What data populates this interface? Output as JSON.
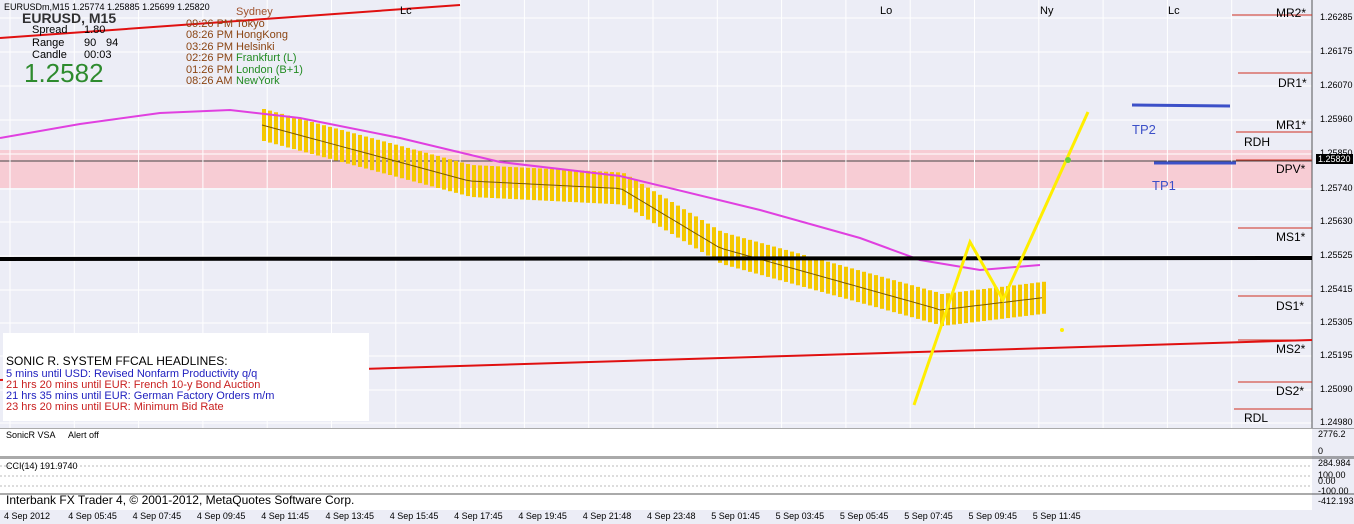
{
  "header": {
    "symbol_line": "EURUSDm,M15  1.25774 1.25885 1.25699 1.25820",
    "big_symbol": "EURUSD, M15",
    "spread_label": "Spread",
    "spread_value": "1.80",
    "range_label": "Range",
    "range_value": "90",
    "range_value2": "94",
    "candle_label": "Candle",
    "candle_value": "00:03",
    "big_price": "1.2582"
  },
  "sessions": [
    {
      "time": "",
      "city": "Sydney",
      "color": "#a0522d"
    },
    {
      "time": "09:26 PM",
      "city": "Tokyo",
      "color": "#8b4513"
    },
    {
      "time": "08:26 PM",
      "city": "HongKong",
      "color": "#8b4513"
    },
    {
      "time": "03:26 PM",
      "city": "Helsinki",
      "color": "#8b4513"
    },
    {
      "time": "02:26 PM",
      "city": "Frankfurt (L)",
      "color": "#228b22"
    },
    {
      "time": "01:26 PM",
      "city": "London  (B+1)",
      "color": "#228b22"
    },
    {
      "time": "08:26 AM",
      "city": "NewYork",
      "color": "#228b22"
    }
  ],
  "top_markers": [
    "Lc",
    "Lo",
    "Ny",
    "Lc"
  ],
  "levels": {
    "mr2": "MR2*",
    "dr1": "DR1*",
    "mr1": "MR1*",
    "rdh": "RDH",
    "dpv": "DPV*",
    "ms1": "MS1*",
    "ds1": "DS1*",
    "ms2": "MS2*",
    "ds2": "DS2*",
    "rdl": "RDL",
    "tp1": "TP1",
    "tp2": "TP2"
  },
  "price_axis": [
    "1.26285",
    "1.26175",
    "1.26070",
    "1.25960",
    "1.25850",
    "1.25740",
    "1.25630",
    "1.25525",
    "1.25415",
    "1.25305",
    "1.25195",
    "1.25090",
    "1.24980"
  ],
  "current_price": "1.25820",
  "headlines": {
    "title": "SONIC R. SYSTEM  FFCAL HEADLINES:",
    "items": [
      {
        "text": "5 mins until USD: Revised Nonfarm Productivity q/q",
        "color": "#1e1ebe"
      },
      {
        "text": "21 hrs 20 mins until EUR: French 10-y Bond Auction",
        "color": "#c81e1e"
      },
      {
        "text": "21 hrs 35 mins until EUR: German Factory Orders m/m",
        "color": "#1e1ebe"
      },
      {
        "text": "23 hrs 20 mins until EUR: Minimum Bid Rate",
        "color": "#c81e1e"
      }
    ]
  },
  "vsa": {
    "label": "SonicR VSA",
    "alert": "Alert off",
    "axis_top": "2776.2",
    "axis_bottom": "0"
  },
  "cci": {
    "label": "CCI(14) 191.9740",
    "axis": [
      "284.984",
      "100.00",
      "0.00",
      "-100.00",
      "-412.193"
    ]
  },
  "copyright": "Interbank FX Trader 4, © 2001-2012, MetaQuotes Software Corp.",
  "time_axis": [
    "4 Sep 2012",
    "4 Sep 05:45",
    "4 Sep 07:45",
    "4 Sep 09:45",
    "4 Sep 11:45",
    "4 Sep 13:45",
    "4 Sep 15:45",
    "4 Sep 17:45",
    "4 Sep 19:45",
    "4 Sep 21:48",
    "4 Sep 23:48",
    "5 Sep 01:45",
    "5 Sep 03:45",
    "5 Sep 05:45",
    "5 Sep 07:45",
    "5 Sep 09:45",
    "5 Sep 11:45"
  ],
  "colors": {
    "bull": "#1e1e9e",
    "bear": "#f05a3c",
    "bg": "#ecedf6",
    "pivot_band": "#f8c8d0",
    "ema": "#e040e0",
    "channel": "#f5c800",
    "trend": "#e01010"
  }
}
